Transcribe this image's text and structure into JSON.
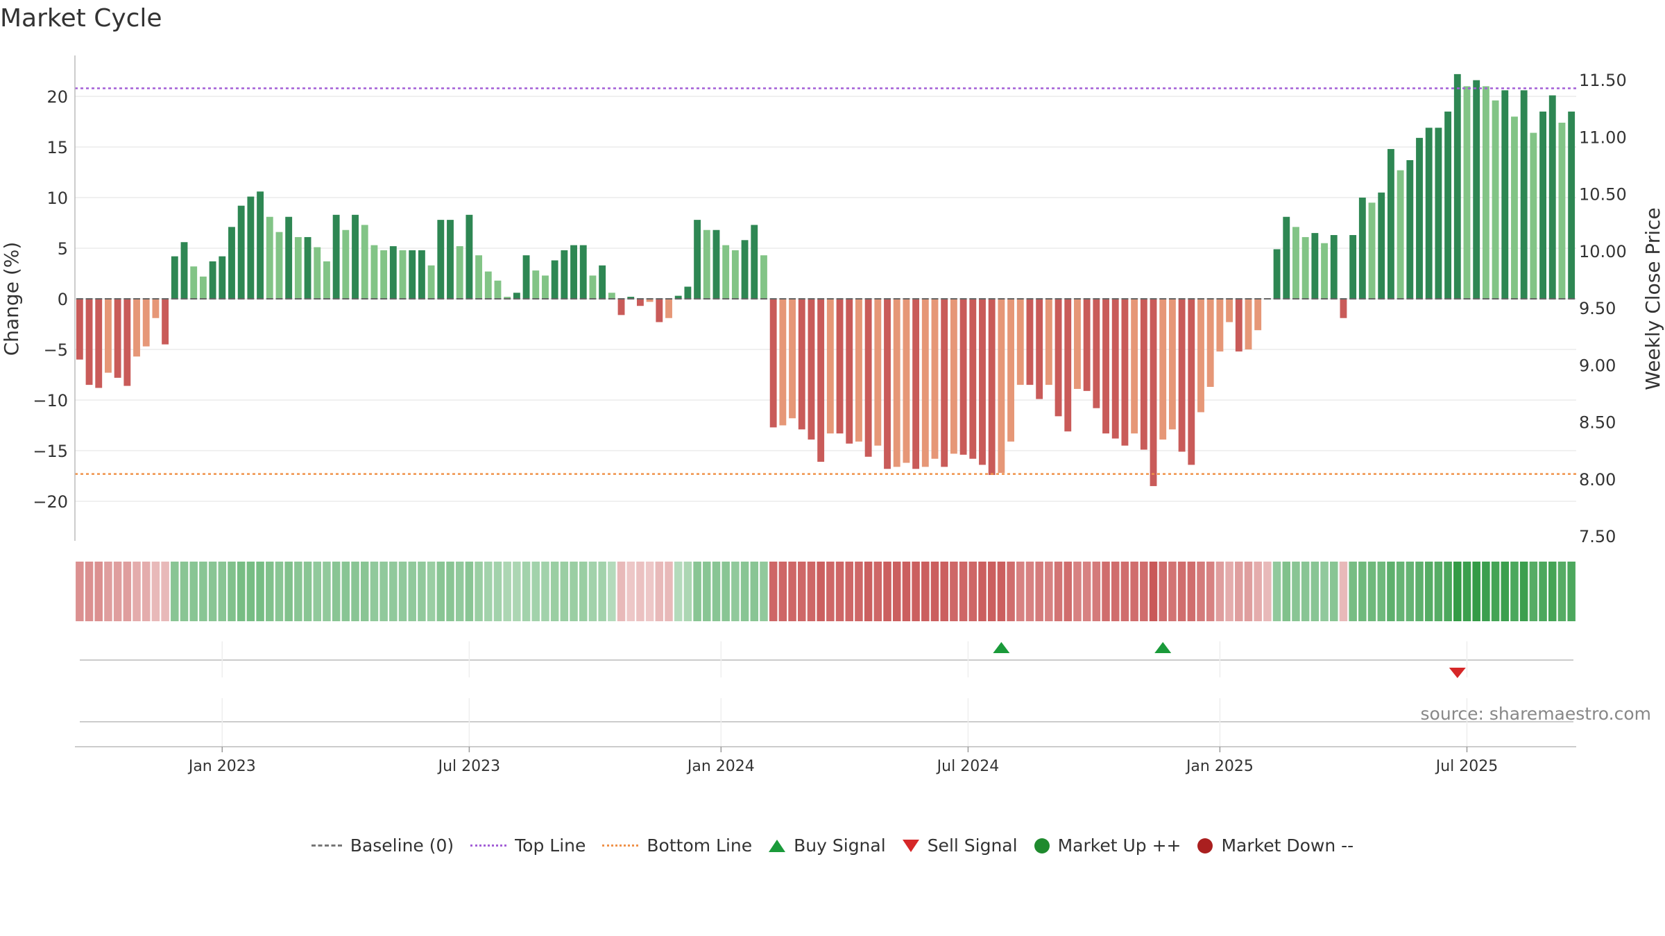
{
  "chart_data": {
    "type": "bar",
    "title": "Market Cycle",
    "ylabel": "Change (%)",
    "y2label": "Weekly Close Price",
    "ylim": [
      -24,
      24
    ],
    "y2lim": [
      7.5,
      11.6
    ],
    "yticks": [
      20,
      15,
      10,
      5,
      0,
      -5,
      -10,
      -15,
      -20
    ],
    "ytick_labels": [
      "20",
      "15",
      "10",
      "5",
      "0",
      "−5",
      "−10",
      "−15",
      "−20"
    ],
    "y2ticks": [
      11.5,
      11.0,
      10.5,
      10.0,
      9.5,
      9.0,
      8.5,
      8.0,
      7.5
    ],
    "y2tick_labels": [
      "11.50",
      "11.00",
      "10.50",
      "10.00",
      "9.50",
      "9.00",
      "8.50",
      "8.00",
      "7.50"
    ],
    "x_labels": [
      {
        "label": "Jan 2023",
        "index": 15
      },
      {
        "label": "Jul 2023",
        "index": 41
      },
      {
        "label": "Jan 2024",
        "index": 67.5
      },
      {
        "label": "Jul 2024",
        "index": 93.5
      },
      {
        "label": "Jan 2025",
        "index": 120
      },
      {
        "label": "Jul 2025",
        "index": 146
      }
    ],
    "top_line": 20.8,
    "bottom_line": -17.3,
    "values": [
      -6,
      -8.5,
      -8.8,
      -7.3,
      -7.8,
      -8.6,
      -5.7,
      -4.7,
      -1.9,
      -4.5,
      4.2,
      5.6,
      3.2,
      2.2,
      3.7,
      4.2,
      7.1,
      9.2,
      10.1,
      10.6,
      8.1,
      6.6,
      8.1,
      6.1,
      6.1,
      5.1,
      3.7,
      8.3,
      6.8,
      8.3,
      7.3,
      5.3,
      4.8,
      5.2,
      4.8,
      4.8,
      4.8,
      3.3,
      7.8,
      7.8,
      5.2,
      8.3,
      4.3,
      2.7,
      1.8,
      0.2,
      0.6,
      4.3,
      2.8,
      2.3,
      3.8,
      4.8,
      5.3,
      5.3,
      2.3,
      3.3,
      0.6,
      -1.6,
      0.2,
      -0.7,
      -0.3,
      -2.3,
      -1.9,
      0.3,
      1.2,
      7.8,
      6.8,
      6.8,
      5.3,
      4.8,
      5.8,
      7.3,
      4.3,
      -12.7,
      -12.5,
      -11.8,
      -12.9,
      -13.9,
      -16.1,
      -13.3,
      -13.3,
      -14.3,
      -14.1,
      -15.6,
      -14.5,
      -16.8,
      -16.6,
      -16.2,
      -16.8,
      -16.6,
      -15.8,
      -16.6,
      -15.3,
      -15.4,
      -15.8,
      -16.4,
      -17.4,
      -17.2,
      -14.1,
      -8.5,
      -8.5,
      -9.9,
      -8.5,
      -11.6,
      -13.1,
      -8.9,
      -9.1,
      -10.8,
      -13.3,
      -13.8,
      -14.5,
      -13.3,
      -14.9,
      -18.5,
      -13.9,
      -12.9,
      -15.1,
      -16.4,
      -11.2,
      -8.7,
      -5.2,
      -2.3,
      -5.2,
      -5,
      -3.1,
      0,
      4.9,
      8.1,
      7.1,
      6.1,
      6.5,
      5.5,
      6.3,
      -1.9,
      6.3,
      10,
      9.5,
      10.5,
      14.8,
      12.7,
      13.7,
      15.9,
      16.9,
      16.9,
      18.5,
      22.2,
      21,
      21.6,
      21,
      19.6,
      20.6,
      18,
      20.6,
      16.4,
      18.5,
      20.1,
      17.4,
      18.5
    ],
    "strip_levels": [
      -0.6,
      -0.6,
      -0.6,
      -0.5,
      -0.5,
      -0.5,
      -0.4,
      -0.4,
      -0.3,
      -0.3,
      0.5,
      0.5,
      0.5,
      0.5,
      0.5,
      0.5,
      0.55,
      0.6,
      0.6,
      0.6,
      0.55,
      0.5,
      0.55,
      0.5,
      0.5,
      0.45,
      0.45,
      0.5,
      0.5,
      0.5,
      0.5,
      0.45,
      0.45,
      0.45,
      0.45,
      0.45,
      0.45,
      0.4,
      0.5,
      0.5,
      0.45,
      0.5,
      0.4,
      0.35,
      0.35,
      0.3,
      0.3,
      0.35,
      0.35,
      0.35,
      0.4,
      0.4,
      0.4,
      0.4,
      0.35,
      0.35,
      0.25,
      -0.3,
      -0.2,
      -0.25,
      -0.2,
      -0.3,
      -0.3,
      0.25,
      0.3,
      0.5,
      0.5,
      0.5,
      0.5,
      0.45,
      0.5,
      0.5,
      0.45,
      -0.9,
      -0.9,
      -0.9,
      -0.9,
      -0.9,
      -0.95,
      -0.9,
      -0.9,
      -0.9,
      -0.9,
      -0.95,
      -0.9,
      -0.95,
      -0.95,
      -0.95,
      -0.95,
      -0.95,
      -0.95,
      -0.95,
      -0.9,
      -0.9,
      -0.9,
      -0.95,
      -0.95,
      -0.95,
      -0.85,
      -0.7,
      -0.7,
      -0.75,
      -0.7,
      -0.8,
      -0.85,
      -0.7,
      -0.7,
      -0.75,
      -0.85,
      -0.85,
      -0.85,
      -0.85,
      -0.85,
      -1.0,
      -0.85,
      -0.8,
      -0.85,
      -0.85,
      -0.75,
      -0.7,
      -0.5,
      -0.4,
      -0.5,
      -0.5,
      -0.4,
      -0.3,
      0.45,
      0.55,
      0.5,
      0.5,
      0.5,
      0.45,
      0.5,
      -0.3,
      0.6,
      0.65,
      0.65,
      0.65,
      0.75,
      0.7,
      0.7,
      0.75,
      0.8,
      0.8,
      0.85,
      1.0,
      0.95,
      1.0,
      0.95,
      0.9,
      0.95,
      0.85,
      0.95,
      0.8,
      0.85,
      0.9,
      0.8,
      0.85
    ],
    "buy_signals": [
      97,
      114
    ],
    "sell_signals": [
      145
    ],
    "legend": [
      "Baseline (0)",
      "Top Line",
      "Bottom Line",
      "Buy Signal",
      "Sell Signal",
      "Market Up ++",
      "Market Down --"
    ],
    "source": "source: sharemaestro.com"
  },
  "colors": {
    "pos_dark": "#2e8753",
    "pos_light": "#82c486",
    "neg_dark": "#c95b59",
    "neg_light": "#e69777",
    "top_line": "#a35fd6",
    "bottom_line": "#f0924a",
    "buy": "#1a9a3a",
    "sell": "#d62728",
    "market_up": "#1f8a2e",
    "market_down": "#aa1f1f"
  }
}
